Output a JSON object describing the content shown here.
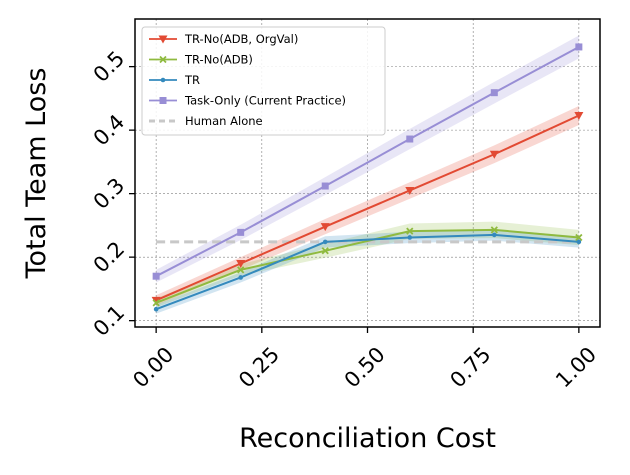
{
  "chart_data": {
    "type": "line",
    "title": "",
    "xlabel": "Reconciliation Cost",
    "ylabel": "Total Team Loss",
    "x": [
      0.0,
      0.2,
      0.4,
      0.6,
      0.8,
      1.0
    ],
    "xlim": [
      -0.05,
      1.05
    ],
    "ylim": [
      0.09,
      0.575
    ],
    "xticks": [
      0.0,
      0.25,
      0.5,
      0.75,
      1.0
    ],
    "xtick_labels": [
      "0.00",
      "0.25",
      "0.50",
      "0.75",
      "1.00"
    ],
    "yticks": [
      0.1,
      0.2,
      0.3,
      0.4,
      0.5
    ],
    "ytick_labels": [
      "0.1",
      "0.2",
      "0.3",
      "0.4",
      "0.5"
    ],
    "grid": true,
    "legend_position": "top-left",
    "series": [
      {
        "name": "TR-No(ADB, OrgVal)",
        "color": "#e24a33",
        "marker": "triangle-down",
        "values": [
          0.132,
          0.19,
          0.248,
          0.305,
          0.362,
          0.423
        ],
        "band": [
          0.008,
          0.01,
          0.012,
          0.013,
          0.014,
          0.015
        ]
      },
      {
        "name": "TR-No(ADB)",
        "color": "#8fba3f",
        "marker": "x",
        "values": [
          0.128,
          0.18,
          0.21,
          0.241,
          0.243,
          0.231
        ],
        "band": [
          0.007,
          0.009,
          0.011,
          0.012,
          0.013,
          0.012
        ]
      },
      {
        "name": "TR",
        "color": "#348abd",
        "marker": "dot",
        "values": [
          0.118,
          0.168,
          0.224,
          0.231,
          0.235,
          0.224
        ],
        "band": [
          0.007,
          0.008,
          0.009,
          0.009,
          0.009,
          0.009
        ]
      },
      {
        "name": "Task-Only (Current Practice)",
        "color": "#988ed5",
        "marker": "square",
        "values": [
          0.17,
          0.239,
          0.312,
          0.386,
          0.459,
          0.531
        ],
        "band": [
          0.01,
          0.012,
          0.014,
          0.016,
          0.017,
          0.018
        ]
      }
    ],
    "reference_line": {
      "name": "Human Alone",
      "color": "#c8c8c8",
      "style": "dashed",
      "value": 0.224
    }
  }
}
